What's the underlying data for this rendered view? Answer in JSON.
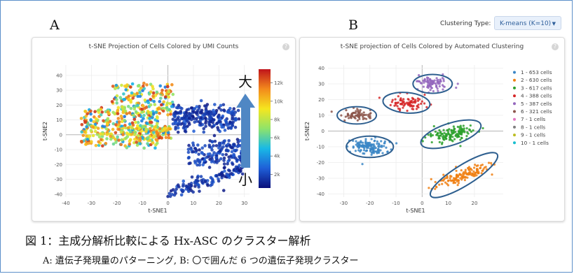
{
  "labels": {
    "panel_a": "A",
    "panel_b": "B"
  },
  "clustering": {
    "label": "Clustering Type:",
    "selected": "K-means (K=10)"
  },
  "caption": {
    "line1": "図 1：主成分解析比較による Hx-ASC のクラスター解析",
    "line2": "A:  遺伝子発現量のパターニング,   B:  〇で囲んだ 6 つの遺伝子発現クラスター"
  },
  "chart_data": [
    {
      "type": "scatter",
      "title": "t-SNE Projection of Cells Colored by UMI Counts",
      "xlabel": "t-SNE1",
      "ylabel": "t-SNE2",
      "xlim": [
        -40,
        32
      ],
      "ylim": [
        -42,
        47
      ],
      "xticks": [
        -40,
        -30,
        -20,
        -10,
        0,
        10,
        20,
        30
      ],
      "yticks": [
        -40,
        -30,
        -20,
        -10,
        0,
        10,
        20,
        30,
        40
      ],
      "grid": true,
      "colorbar": {
        "ticks": [
          "2k",
          "4k",
          "6k",
          "8k",
          "10k",
          "12k"
        ],
        "tick_values": [
          2000,
          4000,
          6000,
          8000,
          10000,
          12000
        ],
        "range": [
          500,
          13500
        ],
        "colors": [
          "#0a0f7a",
          "#1f5fd8",
          "#19b9e6",
          "#8fe36a",
          "#f5e61f",
          "#f38a1c",
          "#c0141b"
        ],
        "annotation_high": "大",
        "annotation_low": "小"
      },
      "regions": [
        {
          "x_range": [
            -38,
            3
          ],
          "y_range": [
            -10,
            38
          ],
          "umi_range": [
            3000,
            13000
          ]
        },
        {
          "x_range": [
            0,
            30
          ],
          "y_range": [
            -40,
            20
          ],
          "umi_range": [
            700,
            2600
          ]
        }
      ]
    },
    {
      "type": "scatter",
      "title": "t-SNE projection of Cells Colored by Automated Clustering",
      "xlabel": "t-SNE1",
      "ylabel": "t-SNE2",
      "xlim": [
        -36,
        31
      ],
      "ylim": [
        -42,
        42
      ],
      "xticks": [
        -30,
        -20,
        -10,
        0,
        10,
        20
      ],
      "yticks": [
        -40,
        -30,
        -20,
        -10,
        0,
        10,
        20,
        30,
        40
      ],
      "grid": true,
      "legend_position": "right",
      "series": [
        {
          "name": "1 - 653 cells",
          "color": "#3a86c6",
          "count": 653,
          "center": [
            -20,
            -10
          ]
        },
        {
          "name": "2 - 630 cells",
          "color": "#f07f12",
          "count": 630,
          "center": [
            16,
            -28
          ]
        },
        {
          "name": "3 - 617 cells",
          "color": "#2ca02c",
          "count": 617,
          "center": [
            11,
            -2
          ]
        },
        {
          "name": "4 - 388 cells",
          "color": "#d62728",
          "count": 388,
          "center": [
            -6,
            18
          ]
        },
        {
          "name": "5 - 387 cells",
          "color": "#9467bd",
          "count": 387,
          "center": [
            4,
            30
          ]
        },
        {
          "name": "6 - 321 cells",
          "color": "#8c564b",
          "count": 321,
          "center": [
            -25,
            10
          ]
        },
        {
          "name": "7 - 1 cells",
          "color": "#e377c2",
          "count": 1
        },
        {
          "name": "8 - 1 cells",
          "color": "#7f7f7f",
          "count": 1
        },
        {
          "name": "9 - 1 cells",
          "color": "#bcbd22",
          "count": 1
        },
        {
          "name": "10 - 1 cells",
          "color": "#17becf",
          "count": 1
        }
      ],
      "highlight_ellipses": 6
    }
  ]
}
